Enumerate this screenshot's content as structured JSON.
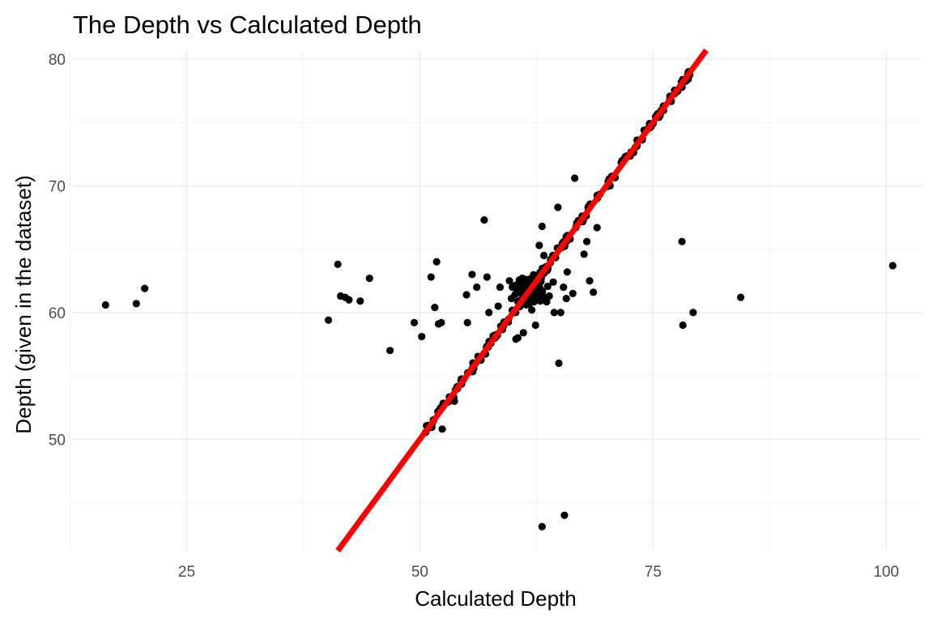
{
  "chart_data": {
    "type": "scatter",
    "title": "The Depth vs Calculated Depth",
    "xlabel": "Calculated Depth",
    "ylabel": "Depth (given in the dataset)",
    "xlim": [
      12.8,
      103.8
    ],
    "ylim": [
      41.2,
      80.7
    ],
    "x_ticks": [
      25,
      50,
      75,
      100
    ],
    "y_ticks": [
      50,
      60,
      70,
      80
    ],
    "x_minor_ticks": [
      12.5,
      37.5,
      62.5,
      87.5
    ],
    "y_minor_ticks": [
      45,
      55,
      65,
      75
    ],
    "grid": true,
    "point_color": "#000000",
    "reference_line": {
      "slope": 1,
      "intercept": 0,
      "color": "#ff0000"
    },
    "diagonal_cluster": {
      "x_start": 50.5,
      "x_end": 79.5,
      "count": 160,
      "jitter": 0.35,
      "seed": 7
    },
    "dense_cluster": {
      "center": [
        61.8,
        61.7
      ],
      "spread": [
        1.6,
        1.0
      ],
      "count": 150,
      "seed": 3
    },
    "points": [
      {
        "x": 16.3,
        "y": 60.6
      },
      {
        "x": 19.6,
        "y": 60.7
      },
      {
        "x": 20.5,
        "y": 61.9
      },
      {
        "x": 40.2,
        "y": 59.4
      },
      {
        "x": 41.2,
        "y": 63.8
      },
      {
        "x": 41.5,
        "y": 61.3
      },
      {
        "x": 42.0,
        "y": 61.2
      },
      {
        "x": 42.4,
        "y": 61.0
      },
      {
        "x": 43.6,
        "y": 60.9
      },
      {
        "x": 44.6,
        "y": 62.7
      },
      {
        "x": 46.8,
        "y": 57.0
      },
      {
        "x": 49.4,
        "y": 59.2
      },
      {
        "x": 50.2,
        "y": 58.1
      },
      {
        "x": 51.2,
        "y": 62.8
      },
      {
        "x": 51.6,
        "y": 60.4
      },
      {
        "x": 51.8,
        "y": 64.0
      },
      {
        "x": 52.0,
        "y": 59.1
      },
      {
        "x": 52.3,
        "y": 59.2
      },
      {
        "x": 52.4,
        "y": 50.8
      },
      {
        "x": 53.7,
        "y": 53.0
      },
      {
        "x": 55.0,
        "y": 61.4
      },
      {
        "x": 55.1,
        "y": 59.2
      },
      {
        "x": 55.6,
        "y": 63.0
      },
      {
        "x": 56.1,
        "y": 62.0
      },
      {
        "x": 56.9,
        "y": 67.3
      },
      {
        "x": 57.2,
        "y": 62.8
      },
      {
        "x": 57.4,
        "y": 60.0
      },
      {
        "x": 58.4,
        "y": 60.5
      },
      {
        "x": 58.6,
        "y": 62.0
      },
      {
        "x": 59.6,
        "y": 62.5
      },
      {
        "x": 60.3,
        "y": 57.9
      },
      {
        "x": 60.5,
        "y": 58.0
      },
      {
        "x": 61.1,
        "y": 58.4
      },
      {
        "x": 62.0,
        "y": 60.2
      },
      {
        "x": 62.4,
        "y": 59.0
      },
      {
        "x": 62.6,
        "y": 62.4
      },
      {
        "x": 62.8,
        "y": 65.3
      },
      {
        "x": 63.1,
        "y": 66.8
      },
      {
        "x": 63.3,
        "y": 64.5
      },
      {
        "x": 63.5,
        "y": 63.6
      },
      {
        "x": 64.3,
        "y": 62.4
      },
      {
        "x": 64.4,
        "y": 60.0
      },
      {
        "x": 64.8,
        "y": 68.3
      },
      {
        "x": 64.9,
        "y": 56.0
      },
      {
        "x": 65.1,
        "y": 60.0
      },
      {
        "x": 65.4,
        "y": 62.0
      },
      {
        "x": 65.7,
        "y": 61.1
      },
      {
        "x": 65.8,
        "y": 63.2
      },
      {
        "x": 66.4,
        "y": 61.5
      },
      {
        "x": 66.6,
        "y": 70.6
      },
      {
        "x": 67.6,
        "y": 64.6
      },
      {
        "x": 67.9,
        "y": 65.6
      },
      {
        "x": 68.2,
        "y": 62.5
      },
      {
        "x": 68.6,
        "y": 61.6
      },
      {
        "x": 69.0,
        "y": 66.7
      },
      {
        "x": 70.4,
        "y": 70.0
      },
      {
        "x": 78.1,
        "y": 65.6
      },
      {
        "x": 78.2,
        "y": 59.0
      },
      {
        "x": 78.8,
        "y": 79.0
      },
      {
        "x": 79.3,
        "y": 60.0
      },
      {
        "x": 84.4,
        "y": 61.2
      },
      {
        "x": 100.7,
        "y": 63.7
      },
      {
        "x": 63.1,
        "y": 43.1
      },
      {
        "x": 65.5,
        "y": 44.0
      }
    ]
  }
}
